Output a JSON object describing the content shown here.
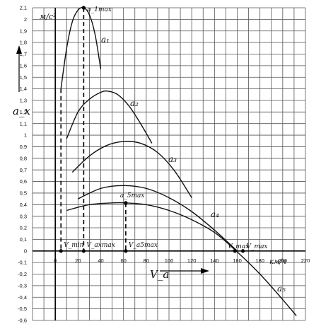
{
  "chart_data": {
    "type": "line",
    "title": "",
    "xlabel": "V_a",
    "ylabel": "a_x",
    "x_unit": "км/ч",
    "y_unit": "м/с²",
    "xlim": [
      -20,
      220
    ],
    "ylim": [
      -0.6,
      2.1
    ],
    "x_ticks": [
      0,
      20,
      40,
      60,
      80,
      100,
      120,
      140,
      160,
      180,
      200,
      220
    ],
    "y_ticks": [
      2.1,
      2.0,
      1.9,
      1.8,
      1.7,
      1.6,
      1.5,
      1.4,
      1.3,
      1.2,
      1.1,
      1.0,
      0.9,
      0.8,
      0.7,
      0.6,
      0.5,
      0.4,
      0.3,
      0.2,
      0.1,
      0,
      -0.1,
      -0.2,
      -0.3,
      -0.4,
      -0.5,
      -0.6
    ],
    "x_tick_labels": [
      "0",
      "20",
      "40",
      "60",
      "80",
      "100",
      "120",
      "140",
      "160",
      "180",
      "200",
      "220"
    ],
    "y_tick_labels": [
      "2,1",
      "2",
      "1,9",
      "1,8",
      "1,7",
      "1,6",
      "1,5",
      "1,4",
      "1,3",
      "1,2",
      "1,1",
      "1",
      "0,9",
      "0,8",
      "0,7",
      "0,6",
      "0,5",
      "0,4",
      "0,3",
      "0,2",
      "0,1",
      "0",
      "-0,1",
      "-0,2",
      "-0,3",
      "-0,4",
      "-0,5",
      "-0,6"
    ],
    "grid": true,
    "series": [
      {
        "name": "a₁",
        "x": [
          5,
          10,
          15,
          20,
          25,
          30,
          35,
          40
        ],
        "y": [
          1.4,
          1.75,
          1.98,
          2.08,
          2.1,
          2.04,
          1.87,
          1.57
        ]
      },
      {
        "name": "a₂",
        "x": [
          10,
          20,
          30,
          40,
          46,
          55,
          65,
          75,
          85
        ],
        "y": [
          0.97,
          1.2,
          1.31,
          1.37,
          1.38,
          1.35,
          1.25,
          1.1,
          0.93
        ]
      },
      {
        "name": "a₃",
        "x": [
          15,
          30,
          45,
          60,
          75,
          90,
          105,
          120
        ],
        "y": [
          0.68,
          0.82,
          0.91,
          0.945,
          0.93,
          0.85,
          0.69,
          0.46
        ]
      },
      {
        "name": "a₄",
        "x": [
          20,
          40,
          60,
          80,
          100,
          120,
          140,
          160
        ],
        "y": [
          0.45,
          0.54,
          0.565,
          0.54,
          0.46,
          0.34,
          0.18,
          0.0
        ]
      },
      {
        "name": "a₅",
        "x": [
          10,
          30,
          50,
          62,
          80,
          100,
          120,
          140,
          158,
          180,
          200,
          212
        ],
        "y": [
          0.35,
          0.4,
          0.415,
          0.415,
          0.4,
          0.35,
          0.27,
          0.16,
          0.01,
          -0.2,
          -0.42,
          -0.56
        ]
      }
    ],
    "reference_lines": [
      {
        "label": "V_min",
        "x": 5,
        "y_top": 1.4
      },
      {
        "label": "V_axmax",
        "x": 25,
        "y_top": 2.1
      },
      {
        "label": "V_a5max",
        "x": 62,
        "y_top": 0.415
      }
    ],
    "annotations": [
      {
        "text": "a_1max",
        "x": 25,
        "y": 2.1
      },
      {
        "text": "a_5max",
        "x": 62,
        "y": 0.415
      },
      {
        "text": "V_max",
        "x": 158,
        "y": 0.0
      },
      {
        "text": "V_max",
        "x": 165,
        "y": 0.0
      }
    ],
    "marked_points": [
      {
        "x": 25,
        "y": 2.1
      },
      {
        "x": 62,
        "y": 0.415
      },
      {
        "x": 5,
        "y": 0
      },
      {
        "x": 25,
        "y": 0
      },
      {
        "x": 62,
        "y": 0
      },
      {
        "x": 158,
        "y": 0
      },
      {
        "x": 165,
        "y": 0
      }
    ],
    "colors": {
      "grid": "#555555",
      "curve": "#111111"
    }
  }
}
